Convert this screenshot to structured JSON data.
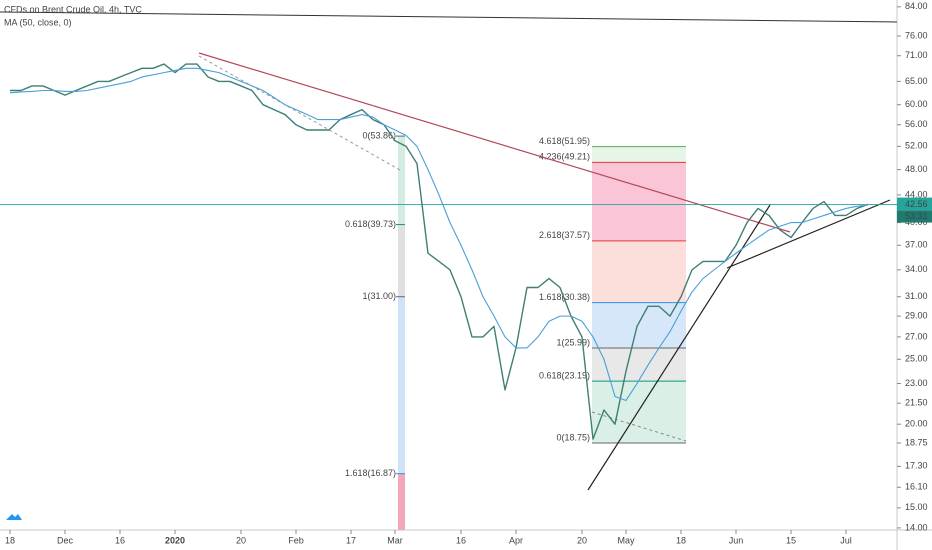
{
  "chart_data": {
    "type": "line",
    "title": "CFDs on Brent Crude Oil, 4h, TVC",
    "subtitle": "MA (50, close, 0)",
    "log_scale": true,
    "categories": [
      "18",
      null,
      null,
      null,
      null,
      "Dec",
      null,
      null,
      null,
      null,
      "16",
      null,
      null,
      null,
      null,
      "2020",
      null,
      null,
      null,
      null,
      null,
      "20",
      null,
      null,
      null,
      null,
      "Feb",
      null,
      null,
      null,
      null,
      "17",
      null,
      null,
      null,
      "Mar",
      null,
      null,
      null,
      null,
      null,
      "16",
      null,
      null,
      null,
      null,
      "Apr",
      null,
      null,
      null,
      null,
      null,
      "20",
      null,
      null,
      null,
      "May",
      null,
      null,
      null,
      null,
      "18",
      null,
      null,
      null,
      null,
      "Jun",
      null,
      null,
      null,
      null,
      "15",
      null,
      null,
      null,
      null,
      "Jul",
      null,
      null
    ],
    "series": [
      {
        "name": "CFDs on Brent Crude Oil, 4h, TVC",
        "color": "#3f7f74",
        "values": [
          63,
          63,
          64,
          64,
          63,
          62,
          63,
          64,
          65,
          65,
          66,
          67,
          68,
          68,
          69,
          67,
          69,
          69,
          66,
          65,
          65,
          64,
          63,
          60,
          59,
          58,
          56,
          55,
          55,
          55,
          57,
          58,
          59,
          57,
          56,
          53,
          52,
          49,
          36,
          35,
          34,
          31,
          27,
          27,
          28,
          22.5,
          26,
          32,
          32,
          33,
          32,
          29,
          27,
          19,
          21,
          20,
          24,
          28,
          30,
          30,
          29,
          31,
          34,
          35,
          35,
          35,
          37,
          40,
          42,
          41,
          39,
          38,
          40,
          42,
          43,
          41,
          41,
          42,
          42.6
        ]
      },
      {
        "name": "MA (50, close, 0)",
        "color": "#4a9fd8",
        "values": [
          62.5,
          62.7,
          62.8,
          63,
          63,
          62.8,
          62.8,
          63,
          63.5,
          64,
          64.5,
          65,
          66,
          66.5,
          67,
          67.5,
          68,
          68,
          67.5,
          67,
          66,
          65,
          64,
          63,
          61.5,
          60,
          59,
          58,
          57,
          57,
          57,
          57.5,
          58,
          57.5,
          56,
          55,
          54,
          52,
          48,
          44,
          40,
          37,
          34,
          31,
          29,
          27,
          26,
          26,
          27,
          28.5,
          29,
          29,
          28.5,
          27,
          25,
          22,
          21.7,
          23,
          24.5,
          26,
          27.5,
          29.5,
          31.5,
          33,
          34,
          35,
          36,
          37,
          38,
          39,
          39.5,
          40,
          40,
          40.5,
          41,
          41.5,
          42,
          42.3,
          42.5
        ]
      }
    ],
    "ylim": [
      13.9,
      86
    ],
    "yticks": [
      {
        "value": 84,
        "label": "84.00"
      },
      {
        "value": 76,
        "label": "76.00"
      },
      {
        "value": 71,
        "label": "71.00"
      },
      {
        "value": 65,
        "label": "65.00"
      },
      {
        "value": 60,
        "label": "60.00"
      },
      {
        "value": 56,
        "label": "56.00"
      },
      {
        "value": 52,
        "label": "52.00"
      },
      {
        "value": 48,
        "label": "48.00"
      },
      {
        "value": 44,
        "label": "44.00"
      },
      {
        "value": 40,
        "label": "40.00"
      },
      {
        "value": 37,
        "label": "37.00"
      },
      {
        "value": 34,
        "label": "34.00"
      },
      {
        "value": 31,
        "label": "31.00"
      },
      {
        "value": 29,
        "label": "29.00"
      },
      {
        "value": 27,
        "label": "27.00"
      },
      {
        "value": 25,
        "label": "25.00"
      },
      {
        "value": 23,
        "label": "23.00"
      },
      {
        "value": 21.5,
        "label": "21.50"
      },
      {
        "value": 20,
        "label": "20.00"
      },
      {
        "value": 18.75,
        "label": "18.75"
      },
      {
        "value": 17.3,
        "label": "17.30"
      },
      {
        "value": 16.1,
        "label": "16.10"
      },
      {
        "value": 15,
        "label": "15.00"
      },
      {
        "value": 14,
        "label": "14.00"
      }
    ],
    "last_price": {
      "value": 42.56,
      "label": "42.56",
      "color": "#26a69a"
    },
    "countdown": "53:31",
    "fib_right": [
      {
        "value": 51.95,
        "label": "4.618(51.95)",
        "color": "#4caf50"
      },
      {
        "value": 49.21,
        "label": "4.236(49.21)",
        "color": "#e53935"
      },
      {
        "value": 37.57,
        "label": "2.618(37.57)",
        "color": "#e53935"
      },
      {
        "value": 30.38,
        "label": "1.618(30.38)",
        "color": "#2196f3"
      },
      {
        "value": 25.99,
        "label": "1(25.99)",
        "color": "#666666"
      },
      {
        "value": 23.19,
        "label": "0.618(23.19)",
        "color": "#089981"
      },
      {
        "value": 18.75,
        "label": "0(18.75)",
        "color": "#666666"
      }
    ],
    "fib_left": [
      {
        "value": 53.86,
        "label": "0(53.86)",
        "color": "#666666"
      },
      {
        "value": 39.73,
        "label": "0.618(39.73)",
        "color": "#089981"
      },
      {
        "value": 31.0,
        "label": "1(31.00)",
        "color": "#666666"
      },
      {
        "value": 16.87,
        "label": "1.618(16.87)",
        "color": "#2196f3"
      }
    ]
  }
}
